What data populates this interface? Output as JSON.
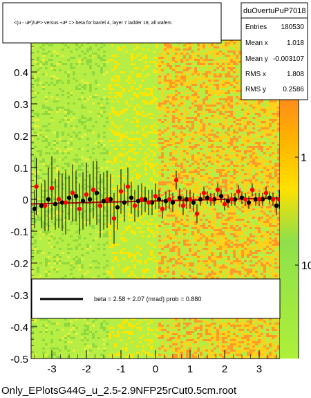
{
  "chart_data": {
    "type": "scatter",
    "title": "<(u - uP)/uP> versus -uP => beta for barrel 4, layer 7 ladder 18, all wafers",
    "filename": "Only_EPlotsG44G_u_2.5-2.9NFP25rCut0.5cm.root",
    "xlim": [
      -3.6,
      3.6
    ],
    "ylim": [
      -0.5,
      0.5
    ],
    "x_ticks": [
      "-3",
      "-2",
      "-1",
      "0",
      "1",
      "2",
      "3"
    ],
    "x_tick_values": [
      -3,
      -2,
      -1,
      0,
      1,
      2,
      3
    ],
    "y_ticks": [
      "-0.5",
      "-0.4",
      "-0.3",
      "-0.2",
      "-0.1",
      "0",
      "0.1",
      "0.2",
      "0.3",
      "0.4"
    ],
    "y_tick_values": [
      -0.5,
      -0.4,
      -0.3,
      -0.2,
      -0.1,
      0,
      0.1,
      0.2,
      0.3,
      0.4
    ],
    "z_scale": "log",
    "z_ticks": [
      "1",
      "10"
    ],
    "z_tick_values": [
      1,
      10
    ],
    "grid": false,
    "stats_box": {
      "name": "duOvertuPuP7018",
      "rows": [
        {
          "label": "Entries",
          "value": "180530"
        },
        {
          "label": "Mean x",
          "value": "1.018"
        },
        {
          "label": "Mean y",
          "value": "-0.003107"
        },
        {
          "label": "RMS x",
          "value": "1.808"
        },
        {
          "label": "RMS y",
          "value": "0.2586"
        }
      ]
    },
    "fit_legend": "beta =     2.58  +   2.07 (mrad) prob = 0.880",
    "fit_line": {
      "slope": 0.00258,
      "intercept": -0.005
    },
    "colors": {
      "heatmap_low": "#aef03a",
      "heatmap_mid": "#ffe000",
      "heatmap_high": "#ff8a1e",
      "profile_black": "#000000",
      "profile_red": "#ff0000",
      "fit_line": "#cc0000"
    },
    "series": [
      {
        "marker": "black",
        "x": [
          -3.5,
          -3.3,
          -3.1,
          -2.9,
          -2.7,
          -2.5,
          -2.3,
          -2.1,
          -1.9,
          -1.7,
          -1.5,
          -1.3,
          -1.1,
          -0.9,
          -0.7,
          -0.5,
          -0.3,
          -0.1,
          0.1,
          0.3,
          0.5,
          0.7,
          0.9,
          1.1,
          1.3,
          1.5,
          1.7,
          1.9,
          2.1,
          2.3,
          2.5,
          2.7,
          2.9,
          3.1,
          3.3,
          3.5
        ],
        "y": [
          -0.03,
          -0.02,
          0.0,
          -0.015,
          -0.01,
          0.005,
          0.01,
          -0.005,
          0.0,
          0.02,
          -0.005,
          0.0,
          -0.025,
          -0.01,
          0.005,
          -0.005,
          0.0,
          -0.01,
          0.0,
          -0.005,
          -0.01,
          0.005,
          0.0,
          -0.01,
          0.0,
          0.005,
          0.0,
          0.01,
          -0.005,
          0.0,
          0.005,
          -0.01,
          0.0,
          0.0,
          0.005,
          -0.02
        ],
        "yerr": [
          0.06,
          0.07,
          0.1,
          0.08,
          0.09,
          0.07,
          0.08,
          0.09,
          0.08,
          0.1,
          0.09,
          0.08,
          0.07,
          0.06,
          0.05,
          0.05,
          0.04,
          0.04,
          0.03,
          0.03,
          0.03,
          0.03,
          0.03,
          0.03,
          0.02,
          0.02,
          0.02,
          0.02,
          0.02,
          0.02,
          0.02,
          0.02,
          0.02,
          0.02,
          0.02,
          0.03
        ]
      },
      {
        "marker": "red",
        "x": [
          -3.45,
          -3.2,
          -3.0,
          -2.8,
          -2.6,
          -2.4,
          -2.2,
          -2.0,
          -1.8,
          -1.6,
          -1.4,
          -1.2,
          -1.0,
          -0.8,
          -0.6,
          -0.4,
          -0.2,
          0.0,
          0.2,
          0.4,
          0.6,
          0.8,
          1.0,
          1.2,
          1.4,
          1.6,
          1.8,
          2.0,
          2.2,
          2.4,
          2.6,
          2.8,
          3.0,
          3.2,
          3.4,
          3.58
        ],
        "y": [
          0.04,
          -0.02,
          0.035,
          0.0,
          -0.01,
          0.02,
          -0.03,
          0.015,
          0.03,
          -0.02,
          0.0,
          -0.06,
          0.025,
          0.04,
          -0.02,
          0.0,
          -0.01,
          0.01,
          -0.03,
          0.0,
          0.06,
          -0.02,
          0.0,
          -0.045,
          0.02,
          0.0,
          0.03,
          -0.015,
          0.0,
          0.025,
          0.0,
          0.03,
          0.0,
          0.02,
          0.0,
          0.0
        ],
        "yerr": [
          0.09,
          0.08,
          0.1,
          0.09,
          0.1,
          0.09,
          0.08,
          0.1,
          0.09,
          0.1,
          0.09,
          0.08,
          0.07,
          0.06,
          0.05,
          0.05,
          0.04,
          0.04,
          0.03,
          0.03,
          0.03,
          0.03,
          0.03,
          0.03,
          0.02,
          0.02,
          0.02,
          0.02,
          0.02,
          0.02,
          0.02,
          0.02,
          0.02,
          0.02,
          0.02,
          0.03
        ]
      }
    ]
  }
}
